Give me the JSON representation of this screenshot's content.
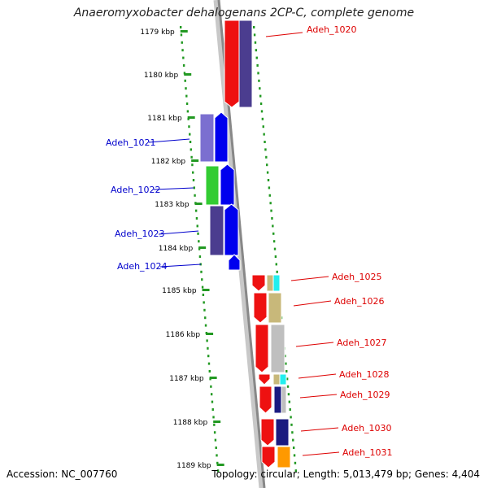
{
  "title": "Anaeromyxobacter dehalogenans 2CP-C, complete genome",
  "accession": "Accession: NC_007760",
  "topology": "Topology: circular; Length: 5,013,479 bp; Genes: 4,404",
  "colors": {
    "scale_dots": "#229922",
    "backbone": "#888888",
    "forward_label": "#dd0000",
    "reverse_label": "#0000cc"
  },
  "scale_ticks": [
    "1179 kbp",
    "1180 kbp",
    "1181 kbp",
    "1182 kbp",
    "1183 kbp",
    "1184 kbp",
    "1185 kbp",
    "1186 kbp",
    "1187 kbp",
    "1188 kbp",
    "1189 kbp"
  ],
  "gene_labels": [
    {
      "text": "Adeh_1020",
      "strand": "forward"
    },
    {
      "text": "Adeh_1021",
      "strand": "reverse"
    },
    {
      "text": "Adeh_1022",
      "strand": "reverse"
    },
    {
      "text": "Adeh_1023",
      "strand": "reverse"
    },
    {
      "text": "Adeh_1024",
      "strand": "reverse"
    },
    {
      "text": "Adeh_1025",
      "strand": "forward"
    },
    {
      "text": "Adeh_1026",
      "strand": "forward"
    },
    {
      "text": "Adeh_1027",
      "strand": "forward"
    },
    {
      "text": "Adeh_1028",
      "strand": "forward"
    },
    {
      "text": "Adeh_1029",
      "strand": "forward"
    },
    {
      "text": "Adeh_1030",
      "strand": "forward"
    },
    {
      "text": "Adeh_1031",
      "strand": "forward"
    }
  ]
}
